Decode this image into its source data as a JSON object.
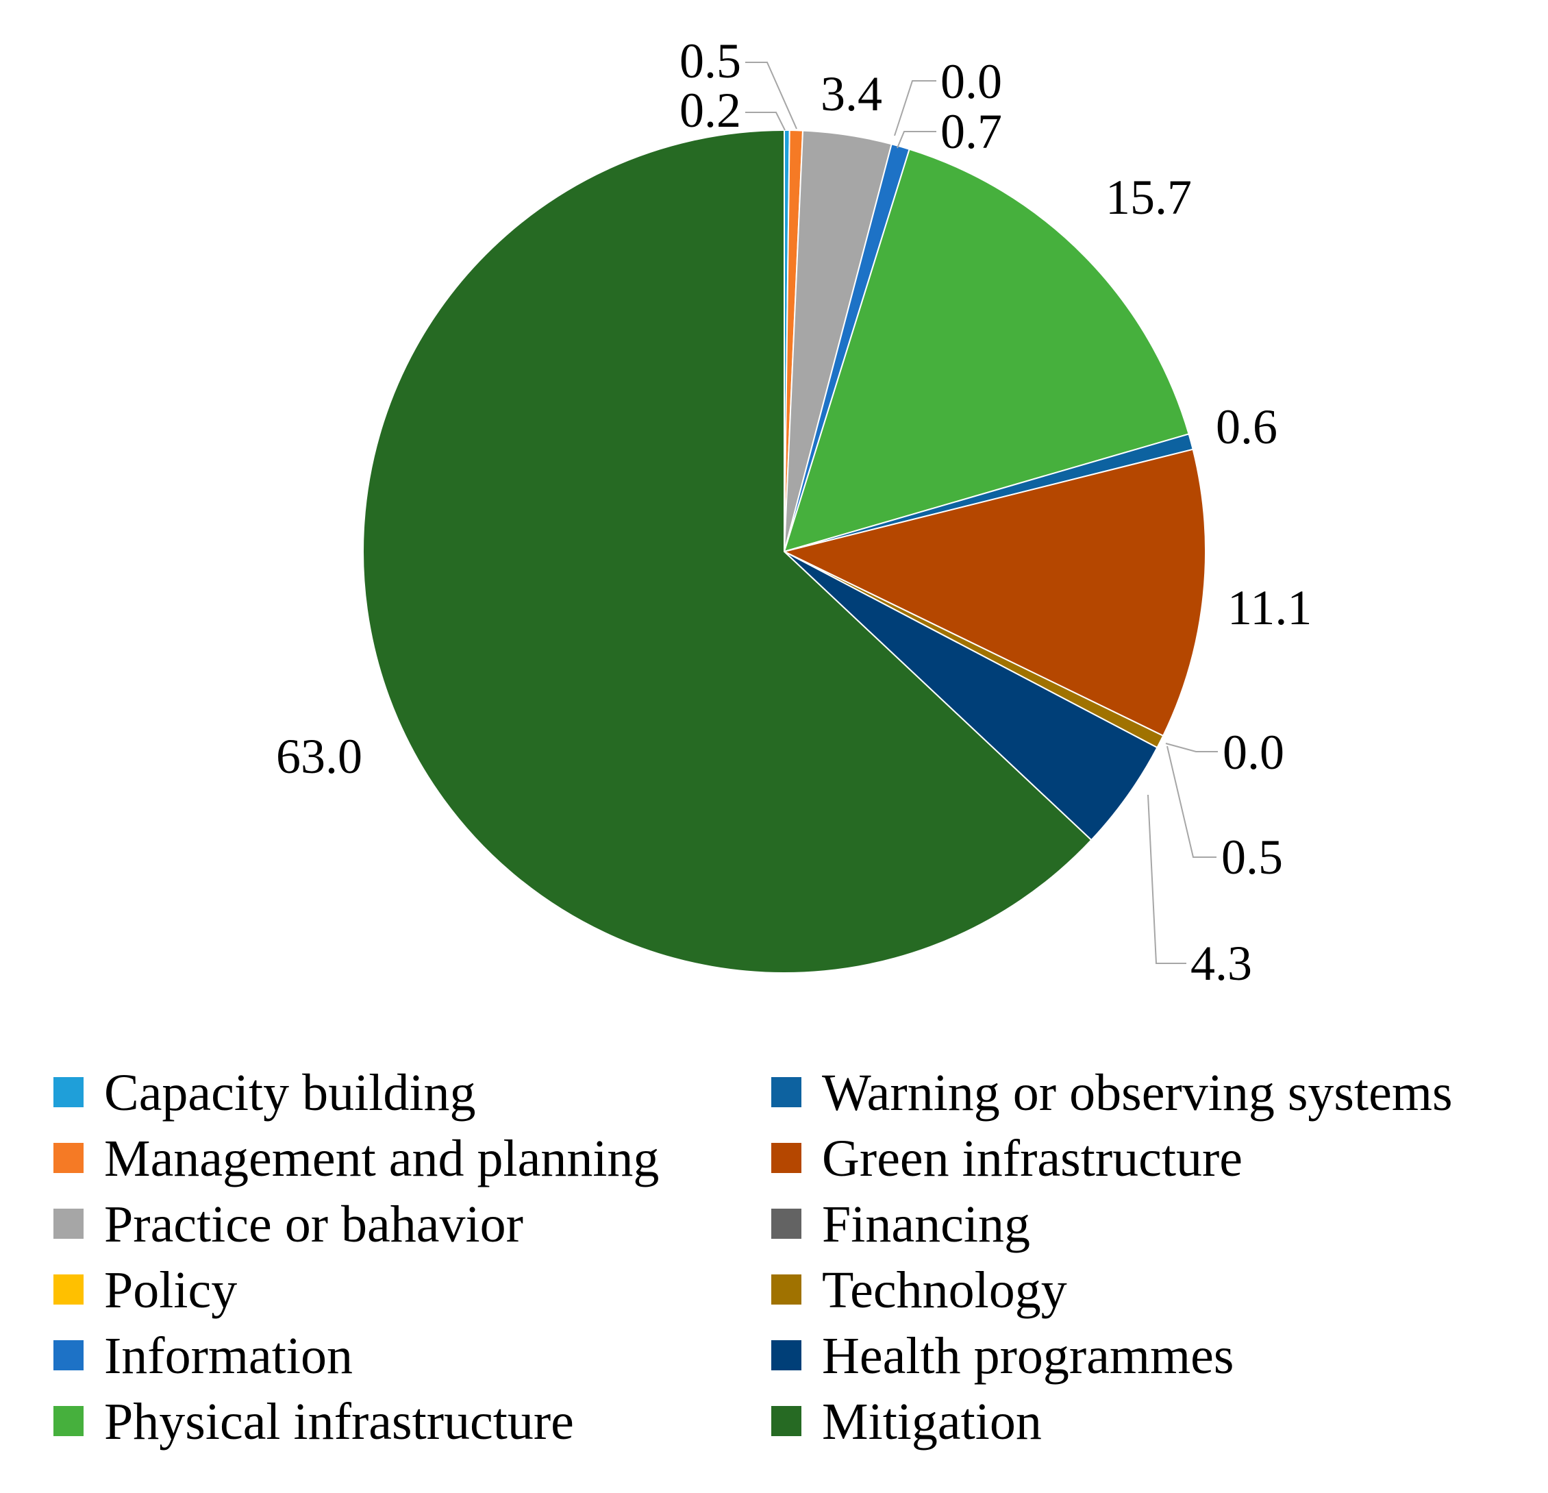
{
  "chart_data": {
    "type": "pie",
    "title": "",
    "start": "top, clockwise",
    "slices": [
      {
        "label": "Capacity building",
        "value": 0.2,
        "display": "0.2",
        "color": "#1f9fd9"
      },
      {
        "label": "Management and planning",
        "value": 0.5,
        "display": "0.5",
        "color": "#f57a25"
      },
      {
        "label": "Practice or bahavior",
        "value": 3.4,
        "display": "3.4",
        "color": "#a6a6a6"
      },
      {
        "label": "Policy",
        "value": 0.0,
        "display": "0.0",
        "color": "#ffc000"
      },
      {
        "label": "Information",
        "value": 0.7,
        "display": "0.7",
        "color": "#1d72c6"
      },
      {
        "label": "Physical infrastructure",
        "value": 15.7,
        "display": "15.7",
        "color": "#46b03d"
      },
      {
        "label": "Warning or observing systems",
        "value": 0.6,
        "display": "0.6",
        "color": "#0d62a0"
      },
      {
        "label": "Green infrastructure",
        "value": 11.1,
        "display": "11.1",
        "color": "#b54700"
      },
      {
        "label": "Financing",
        "value": 0.0,
        "display": "0.0",
        "color": "#636363"
      },
      {
        "label": "Technology",
        "value": 0.5,
        "display": "0.5",
        "color": "#a07200"
      },
      {
        "label": "Health programmes",
        "value": 4.3,
        "display": "4.3",
        "color": "#003f78"
      },
      {
        "label": "Mitigation",
        "value": 63.0,
        "display": "63.0",
        "color": "#266a23"
      }
    ],
    "legend": {
      "position": "bottom",
      "columns": 2,
      "entries": [
        "Capacity building",
        "Warning or observing systems",
        "Management and planning",
        "Green infrastructure",
        "Practice or bahavior",
        "Financing",
        "Policy",
        "Technology",
        "Information",
        "Health programmes",
        "Physical infrastructure",
        "Mitigation"
      ]
    }
  }
}
